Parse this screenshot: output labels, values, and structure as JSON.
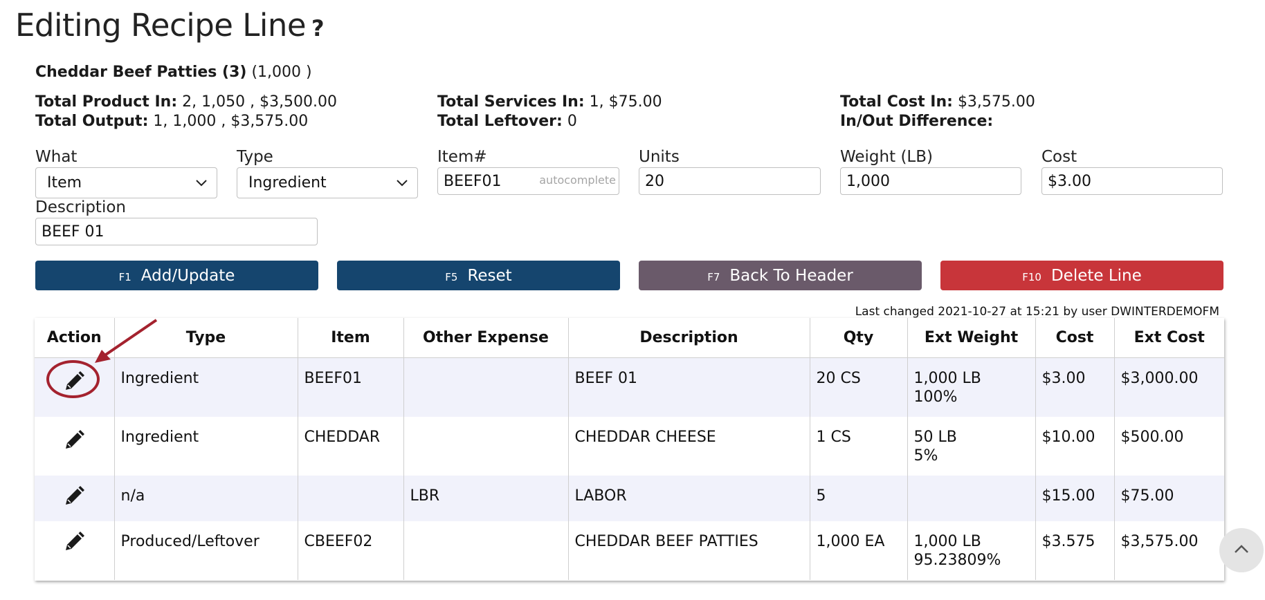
{
  "header": {
    "title": "Editing Recipe Line",
    "help_symbol": "?"
  },
  "recipe": {
    "name": "Cheddar Beef Patties (3)",
    "qty": "(1,000 )"
  },
  "summary": {
    "product_in_label": "Total Product In:",
    "product_in_value": "2, 1,050 , $3,500.00",
    "output_label": "Total Output:",
    "output_value": "1, 1,000 , $3,575.00",
    "services_in_label": "Total Services In:",
    "services_in_value": "1, $75.00",
    "leftover_label": "Total Leftover:",
    "leftover_value": "0",
    "cost_in_label": "Total Cost In:",
    "cost_in_value": "$3,575.00",
    "diff_label": "In/Out Difference:",
    "diff_value": ""
  },
  "form": {
    "what_label": "What",
    "what_value": "Item",
    "type_label": "Type",
    "type_value": "Ingredient",
    "item_label": "Item#",
    "item_value": "BEEF01",
    "item_hint": "autocomplete",
    "units_label": "Units",
    "units_value": "20",
    "weight_label": "Weight (LB)",
    "weight_value": "1,000",
    "cost_label": "Cost",
    "cost_value": "$3.00",
    "description_label": "Description",
    "description_value": "BEEF 01"
  },
  "buttons": {
    "add": {
      "key": "F1",
      "label": "Add/Update"
    },
    "reset": {
      "key": "F5",
      "label": "Reset"
    },
    "back": {
      "key": "F7",
      "label": "Back To Header"
    },
    "delete": {
      "key": "F10",
      "label": "Delete Line"
    }
  },
  "last_changed": "Last changed 2021-10-27 at 15:21 by user DWINTERDEMOFM",
  "table": {
    "headers": [
      "Action",
      "Type",
      "Item",
      "Other Expense",
      "Description",
      "Qty",
      "Ext Weight",
      "Cost",
      "Ext Cost"
    ],
    "rows": [
      {
        "type": "Ingredient",
        "item": "BEEF01",
        "other": "",
        "description": "BEEF 01",
        "qty": "20 CS",
        "ext_weight": "1,000 LB",
        "ext_weight_pct": "100%",
        "cost": "$3.00",
        "ext_cost": "$3,000.00"
      },
      {
        "type": "Ingredient",
        "item": "CHEDDAR",
        "other": "",
        "description": "CHEDDAR CHEESE",
        "qty": "1 CS",
        "ext_weight": "50 LB",
        "ext_weight_pct": "5%",
        "cost": "$10.00",
        "ext_cost": "$500.00"
      },
      {
        "type": "n/a",
        "item": "",
        "other": "LBR",
        "description": "LABOR",
        "qty": "5",
        "ext_weight": "",
        "ext_weight_pct": "",
        "cost": "$15.00",
        "ext_cost": "$75.00"
      },
      {
        "type": "Produced/Leftover",
        "item": "CBEEF02",
        "other": "",
        "description": "CHEDDAR BEEF PATTIES",
        "qty": "1,000 EA",
        "ext_weight": "1,000 LB",
        "ext_weight_pct": "95.23809%",
        "cost": "$3.575",
        "ext_cost": "$3,575.00"
      }
    ]
  },
  "icons": {
    "edit": "pencil-icon",
    "scroll_top": "chevron-up-icon"
  },
  "colors": {
    "primary": "#15456e",
    "secondary": "#6a5a6a",
    "danger": "#c8353a",
    "annotation": "#a4222e",
    "row_alt": "#f1f2fb"
  }
}
